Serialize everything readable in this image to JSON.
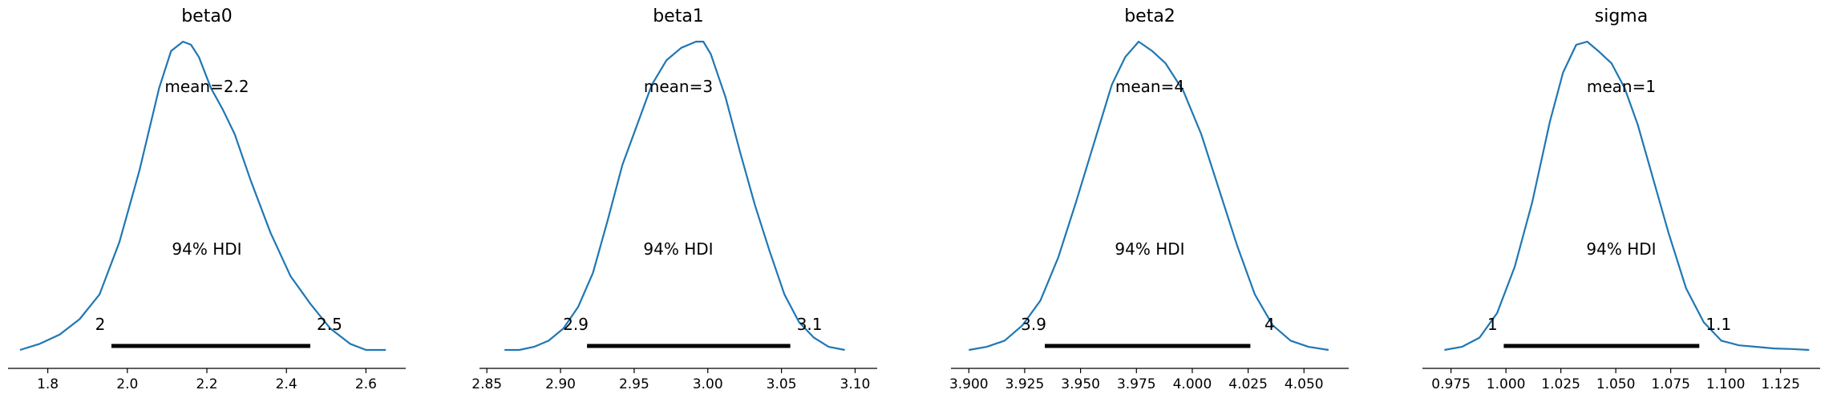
{
  "chart_data": [
    {
      "type": "area",
      "title": "beta0",
      "mean_label": "mean=2.2",
      "hdi_label": "94% HDI",
      "hdi_low_label": "2",
      "hdi_high_label": "2.5",
      "hdi": [
        1.96,
        2.46
      ],
      "xlim": [
        1.7,
        2.7
      ],
      "xticks": [
        "1.8",
        "2.0",
        "2.2",
        "2.4",
        "2.6"
      ],
      "xtick_values": [
        1.8,
        2.0,
        2.2,
        2.4,
        2.6
      ],
      "density": {
        "x": [
          1.73,
          1.78,
          1.83,
          1.88,
          1.93,
          1.98,
          2.03,
          2.08,
          2.11,
          2.14,
          2.16,
          2.18,
          2.21,
          2.24,
          2.27,
          2.31,
          2.36,
          2.41,
          2.46,
          2.51,
          2.56,
          2.6,
          2.65
        ],
        "y": [
          0.0,
          0.02,
          0.05,
          0.1,
          0.18,
          0.35,
          0.58,
          0.85,
          0.97,
          1.0,
          0.99,
          0.95,
          0.85,
          0.78,
          0.7,
          0.55,
          0.38,
          0.24,
          0.15,
          0.07,
          0.02,
          0.0,
          0.0
        ]
      }
    },
    {
      "type": "area",
      "title": "beta1",
      "mean_label": "mean=3",
      "hdi_label": "94% HDI",
      "hdi_low_label": "2.9",
      "hdi_high_label": "3.1",
      "hdi": [
        2.918,
        3.056
      ],
      "xlim": [
        2.845,
        3.115
      ],
      "xticks": [
        "2.85",
        "2.90",
        "2.95",
        "3.00",
        "3.05",
        "3.10"
      ],
      "xtick_values": [
        2.85,
        2.9,
        2.95,
        3.0,
        3.05,
        3.1
      ],
      "density": {
        "x": [
          2.862,
          2.872,
          2.882,
          2.892,
          2.902,
          2.912,
          2.922,
          2.932,
          2.942,
          2.952,
          2.962,
          2.972,
          2.982,
          2.992,
          2.997,
          3.002,
          3.012,
          3.022,
          3.032,
          3.042,
          3.052,
          3.062,
          3.072,
          3.082,
          3.093
        ],
        "y": [
          0.0,
          0.0,
          0.01,
          0.03,
          0.07,
          0.14,
          0.25,
          0.42,
          0.6,
          0.73,
          0.86,
          0.94,
          0.98,
          1.0,
          1.0,
          0.96,
          0.82,
          0.64,
          0.47,
          0.32,
          0.18,
          0.09,
          0.04,
          0.01,
          0.0
        ]
      }
    },
    {
      "type": "area",
      "title": "beta2",
      "mean_label": "mean=4",
      "hdi_label": "94% HDI",
      "hdi_low_label": "3.9",
      "hdi_high_label": "4",
      "hdi": [
        3.934,
        4.026
      ],
      "xlim": [
        3.892,
        4.07
      ],
      "xticks": [
        "3.900",
        "3.925",
        "3.950",
        "3.975",
        "4.000",
        "4.025",
        "4.050"
      ],
      "xtick_values": [
        3.9,
        3.925,
        3.95,
        3.975,
        4.0,
        4.025,
        4.05
      ],
      "density": {
        "x": [
          3.9,
          3.908,
          3.916,
          3.924,
          3.932,
          3.94,
          3.948,
          3.956,
          3.964,
          3.97,
          3.976,
          3.982,
          3.988,
          3.996,
          4.004,
          4.012,
          4.02,
          4.028,
          4.036,
          4.044,
          4.052,
          4.061
        ],
        "y": [
          0.0,
          0.01,
          0.03,
          0.08,
          0.16,
          0.3,
          0.48,
          0.67,
          0.86,
          0.95,
          1.0,
          0.97,
          0.93,
          0.84,
          0.7,
          0.52,
          0.34,
          0.18,
          0.08,
          0.03,
          0.01,
          0.0
        ]
      }
    },
    {
      "type": "area",
      "title": "sigma",
      "mean_label": "mean=1",
      "hdi_label": "94% HDI",
      "hdi_low_label": "1",
      "hdi_high_label": "1.1",
      "hdi": [
        0.999,
        1.088
      ],
      "xlim": [
        0.962,
        1.143
      ],
      "xticks": [
        "0.975",
        "1.000",
        "1.025",
        "1.050",
        "1.075",
        "1.100",
        "1.125"
      ],
      "xtick_values": [
        0.975,
        1.0,
        1.025,
        1.05,
        1.075,
        1.1,
        1.125
      ],
      "density": {
        "x": [
          0.972,
          0.98,
          0.988,
          0.996,
          1.004,
          1.012,
          1.02,
          1.026,
          1.032,
          1.037,
          1.042,
          1.048,
          1.054,
          1.06,
          1.066,
          1.074,
          1.082,
          1.09,
          1.098,
          1.106,
          1.114,
          1.122,
          1.13,
          1.138
        ],
        "y": [
          0.0,
          0.01,
          0.04,
          0.12,
          0.27,
          0.48,
          0.74,
          0.9,
          0.99,
          1.0,
          0.97,
          0.93,
          0.85,
          0.73,
          0.58,
          0.38,
          0.2,
          0.09,
          0.03,
          0.015,
          0.01,
          0.005,
          0.003,
          0.0
        ]
      }
    }
  ],
  "colors": {
    "kde_line": "#1f77b4",
    "hdi_bar": "#000000",
    "axis": "#000000"
  }
}
